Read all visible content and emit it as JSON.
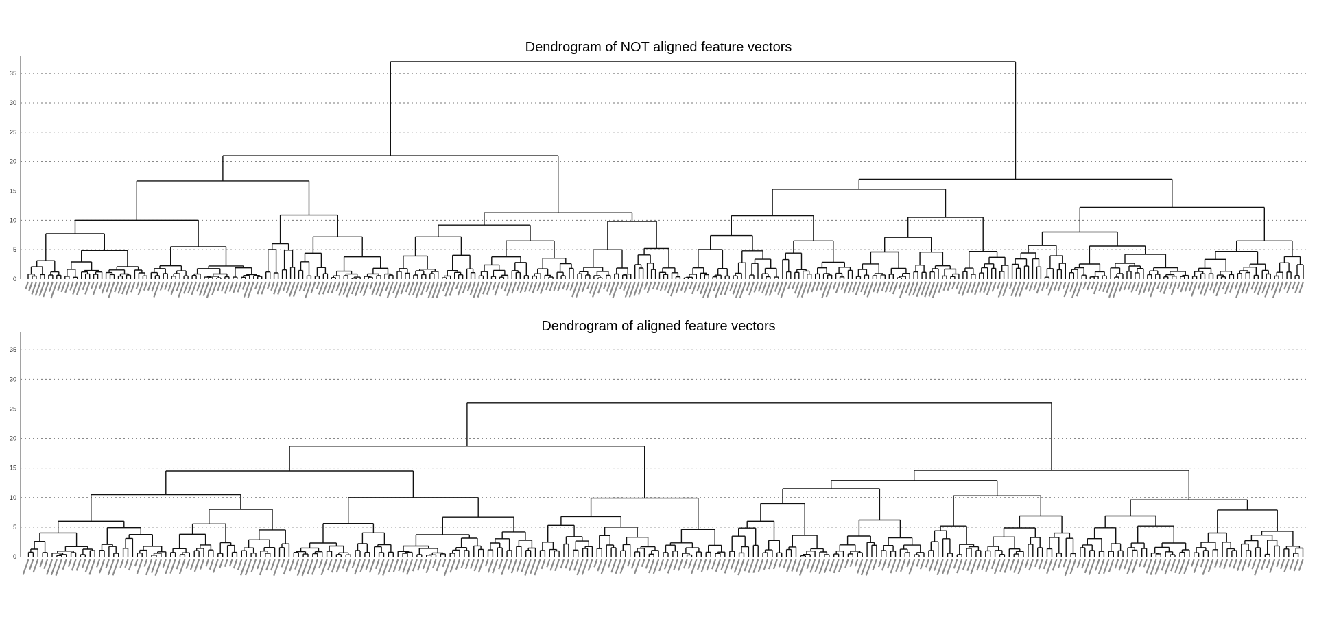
{
  "chart_data": [
    {
      "type": "dendrogram",
      "title": "Dendrogram of NOT aligned feature vectors",
      "xlabel": "",
      "ylabel": "",
      "ylim": [
        0,
        37
      ],
      "yticks": [
        0,
        5,
        10,
        15,
        20,
        25,
        30,
        35
      ],
      "grid": "horizontal-dotted",
      "leaf_count": 240,
      "root_height": 37.0,
      "major_merges": [
        {
          "clusters": [
            "left",
            "right"
          ],
          "height": 37.0
        },
        {
          "clusters": [
            "left-a",
            "left-b"
          ],
          "height": 21.0
        },
        {
          "clusters": [
            "right-a",
            "right-b"
          ],
          "height": 17.0
        },
        {
          "clusters": [
            "left-a1",
            "left-a2"
          ],
          "height": 16.7
        },
        {
          "clusters": [
            "right-a1",
            "right-a2"
          ],
          "height": 15.3
        },
        {
          "clusters": [
            "right-b1",
            "right-b2"
          ],
          "height": 12.2
        },
        {
          "clusters": [
            "left-b1",
            "left-b2"
          ],
          "height": 11.3
        },
        {
          "clusters": [
            "left-a2a",
            "left-a2b"
          ],
          "height": 10.9
        }
      ]
    },
    {
      "type": "dendrogram",
      "title": "Dendrogram of aligned feature vectors",
      "xlabel": "",
      "ylabel": "",
      "ylim": [
        0,
        37
      ],
      "yticks": [
        0,
        5,
        10,
        15,
        20,
        25,
        30,
        35
      ],
      "grid": "horizontal-dotted",
      "leaf_count": 240,
      "root_height": 26.0,
      "major_merges": [
        {
          "clusters": [
            "left",
            "right"
          ],
          "height": 26.0
        },
        {
          "clusters": [
            "left-a",
            "left-b"
          ],
          "height": 18.7
        },
        {
          "clusters": [
            "right-a",
            "right-b"
          ],
          "height": 14.6
        },
        {
          "clusters": [
            "left-a1",
            "left-a2"
          ],
          "height": 14.5
        },
        {
          "clusters": [
            "right-a1",
            "right-a2"
          ],
          "height": 12.9
        },
        {
          "clusters": [
            "left-a1a",
            "left-a1b"
          ],
          "height": 10.5
        },
        {
          "clusters": [
            "right-a1a",
            "right-a1b"
          ],
          "height": 11.5
        },
        {
          "clusters": [
            "right-a2a",
            "right-a2b"
          ],
          "height": 10.3
        },
        {
          "clusters": [
            "left-b1",
            "left-b2"
          ],
          "height": 9.9
        },
        {
          "clusters": [
            "left-a2a",
            "left-a2b"
          ],
          "height": 10.0
        },
        {
          "clusters": [
            "right-b1",
            "right-b2"
          ],
          "height": 9.6
        }
      ]
    }
  ]
}
